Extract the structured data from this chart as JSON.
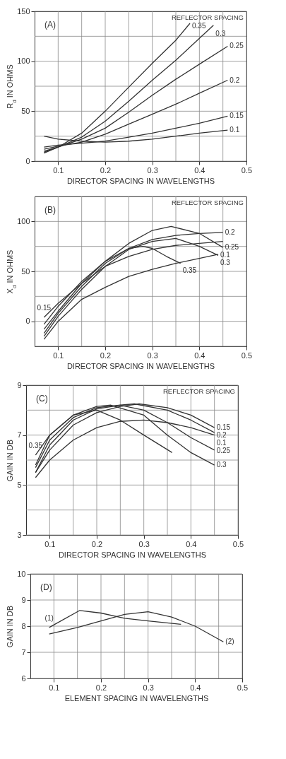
{
  "chart_data": [
    {
      "type": "line",
      "annotations": [
        "(A)"
      ],
      "legend": "top right",
      "legend_title": "REFLECTOR SPACING",
      "xlabel": "DIRECTOR SPACING IN WAVELENGTHS",
      "ylabel": "R$_{d}$ IN OHMS",
      "xlim": [
        0.05,
        0.5
      ],
      "ylim": [
        0,
        150
      ],
      "xticks": [
        0.1,
        {
          "value": 0.15,
          "label": null
        },
        0.2,
        {
          "value": 0.25,
          "label": null
        },
        0.3,
        {
          "value": 0.35,
          "label": null
        },
        0.4,
        {
          "value": 0.45,
          "label": null
        },
        0.5
      ],
      "yticks": [
        0,
        {
          "value": 25,
          "label": null
        },
        50,
        {
          "value": 75,
          "label": null
        },
        100,
        {
          "value": 125,
          "label": null
        },
        150
      ],
      "grid": true,
      "x": [
        0.07,
        0.1,
        0.15,
        0.2,
        0.25,
        0.3,
        0.35,
        0.4,
        0.46
      ],
      "series": [
        {
          "name": "0.35",
          "color": "#333333",
          "x": [
            0.07,
            0.1,
            0.15,
            0.2,
            0.25,
            0.3,
            0.35,
            0.38
          ],
          "values": [
            10,
            14,
            28,
            50,
            74,
            98,
            121,
            138
          ]
        },
        {
          "name": "0.3",
          "color": "#333333",
          "x": [
            0.07,
            0.1,
            0.15,
            0.2,
            0.25,
            0.3,
            0.35,
            0.4,
            0.43
          ],
          "values": [
            9,
            14,
            24,
            40,
            60,
            81,
            101,
            123,
            136
          ]
        },
        {
          "name": "0.25",
          "color": "#333333",
          "values": [
            8,
            14,
            22,
            33,
            49,
            66,
            82,
            97,
            115
          ]
        },
        {
          "name": "0.2",
          "color": "#333333",
          "values": [
            12,
            15,
            19,
            27,
            37,
            47,
            57,
            68,
            81
          ]
        },
        {
          "name": "0.15",
          "color": "#333333",
          "values": [
            14,
            16,
            18,
            20,
            24,
            28,
            33,
            38,
            45
          ]
        },
        {
          "name": "0.1",
          "color": "#333333",
          "values": [
            25,
            22,
            20,
            19,
            20,
            22,
            25,
            28,
            31
          ]
        }
      ]
    },
    {
      "type": "line",
      "annotations": [
        "(B)"
      ],
      "legend": "top right",
      "legend_title": "REFLECTOR SPACING",
      "xlabel": "DIRECTOR SPACING IN WAVELENGTHS",
      "ylabel": "X$_{d}$ IN OHMS",
      "xlim": [
        0.05,
        0.5
      ],
      "ylim": [
        -25,
        125
      ],
      "xticks": [
        0.1,
        {
          "value": 0.15,
          "label": null
        },
        0.2,
        {
          "value": 0.25,
          "label": null
        },
        0.3,
        {
          "value": 0.35,
          "label": null
        },
        0.4,
        {
          "value": 0.45,
          "label": null
        },
        0.5
      ],
      "yticks": [
        {
          "value": -25,
          "label": null
        },
        0,
        {
          "value": 25,
          "label": null
        },
        50,
        {
          "value": 75,
          "label": null
        },
        100,
        {
          "value": 125,
          "label": null
        }
      ],
      "grid": true,
      "series": [
        {
          "name": "0.35",
          "color": "#333333",
          "x": [
            0.07,
            0.1,
            0.15,
            0.2,
            0.25,
            0.28,
            0.3,
            0.33,
            0.36
          ],
          "values": [
            -12,
            8,
            35,
            58,
            73,
            75,
            73,
            65,
            58
          ]
        },
        {
          "name": "0.3",
          "color": "#333333",
          "x": [
            0.07,
            0.1,
            0.15,
            0.2,
            0.25,
            0.3,
            0.35,
            0.4,
            0.44
          ],
          "values": [
            -15,
            5,
            32,
            55,
            72,
            80,
            83,
            75,
            66
          ]
        },
        {
          "name": "0.25",
          "color": "#333333",
          "x": [
            0.07,
            0.1,
            0.15,
            0.2,
            0.25,
            0.3,
            0.34,
            0.4,
            0.45
          ],
          "values": [
            -8,
            10,
            38,
            60,
            78,
            91,
            95,
            88,
            74
          ]
        },
        {
          "name": "0.2",
          "color": "#333333",
          "x": [
            0.07,
            0.1,
            0.15,
            0.2,
            0.25,
            0.3,
            0.35,
            0.4,
            0.45
          ],
          "values": [
            -3,
            15,
            40,
            60,
            73,
            82,
            86,
            88,
            89
          ]
        },
        {
          "name": "0.15",
          "color": "#333333",
          "x": [
            0.07,
            0.1,
            0.15,
            0.2,
            0.25,
            0.3,
            0.35,
            0.4,
            0.45
          ],
          "values": [
            4,
            18,
            38,
            55,
            65,
            72,
            76,
            78,
            80
          ]
        },
        {
          "name": "0.1",
          "color": "#333333",
          "x": [
            0.07,
            0.1,
            0.15,
            0.2,
            0.25,
            0.3,
            0.35,
            0.4,
            0.44
          ],
          "values": [
            -18,
            0,
            22,
            34,
            45,
            52,
            58,
            63,
            67
          ]
        }
      ]
    },
    {
      "type": "line",
      "annotations": [
        "(C)"
      ],
      "legend": "top right",
      "legend_title": "REFLECTOR SPACING",
      "xlabel": "DIRECTOR SPACING IN WAVELENGTHS",
      "ylabel": "GAIN IN DB",
      "xlim": [
        0.05,
        0.5
      ],
      "ylim": [
        3,
        9
      ],
      "xticks": [
        0.1,
        {
          "value": 0.15,
          "label": null
        },
        0.2,
        {
          "value": 0.25,
          "label": null
        },
        0.3,
        {
          "value": 0.35,
          "label": null
        },
        0.4,
        {
          "value": 0.45,
          "label": null
        },
        0.5
      ],
      "yticks": [
        3,
        {
          "value": 4,
          "label": null
        },
        5,
        {
          "value": 6,
          "label": null
        },
        7,
        {
          "value": 8,
          "label": null
        },
        9
      ],
      "grid": true,
      "series": [
        {
          "name": "0.35",
          "color": "#333333",
          "x": [
            0.07,
            0.1,
            0.15,
            0.2,
            0.25,
            0.3,
            0.36
          ],
          "values": [
            6.2,
            7.0,
            7.8,
            8.0,
            7.6,
            7.0,
            6.3
          ]
        },
        {
          "name": "0.3",
          "color": "#333333",
          "x": [
            0.07,
            0.1,
            0.15,
            0.2,
            0.23,
            0.3,
            0.35,
            0.4,
            0.45
          ],
          "values": [
            5.8,
            7.0,
            7.8,
            8.15,
            8.2,
            7.8,
            7.0,
            6.3,
            5.8
          ]
        },
        {
          "name": "0.25",
          "color": "#333333",
          "x": [
            0.07,
            0.1,
            0.15,
            0.2,
            0.25,
            0.3,
            0.35,
            0.4,
            0.45
          ],
          "values": [
            5.7,
            6.8,
            7.7,
            8.1,
            8.2,
            8.0,
            7.5,
            6.9,
            6.4
          ]
        },
        {
          "name": "0.2",
          "color": "#333333",
          "x": [
            0.07,
            0.1,
            0.15,
            0.2,
            0.25,
            0.28,
            0.35,
            0.4,
            0.45
          ],
          "values": [
            5.5,
            6.6,
            7.6,
            8.05,
            8.2,
            8.25,
            8.0,
            7.6,
            7.1
          ]
        },
        {
          "name": "0.15",
          "color": "#333333",
          "x": [
            0.07,
            0.1,
            0.15,
            0.2,
            0.25,
            0.29,
            0.35,
            0.4,
            0.45
          ],
          "values": [
            5.5,
            6.4,
            7.4,
            7.9,
            8.15,
            8.25,
            8.1,
            7.8,
            7.3
          ]
        },
        {
          "name": "0.1",
          "color": "#333333",
          "x": [
            0.07,
            0.1,
            0.15,
            0.2,
            0.25,
            0.3,
            0.35,
            0.4,
            0.45
          ],
          "values": [
            5.3,
            6.0,
            6.8,
            7.3,
            7.55,
            7.6,
            7.5,
            7.3,
            7.0
          ]
        }
      ]
    },
    {
      "type": "line",
      "annotations": [
        "(D)"
      ],
      "xlabel": "ELEMENT SPACING IN WAVELENGTHS",
      "ylabel": "GAIN IN DB",
      "xlim": [
        0.05,
        0.5
      ],
      "ylim": [
        6,
        10
      ],
      "xticks": [
        0.1,
        {
          "value": 0.15,
          "label": null
        },
        0.2,
        {
          "value": 0.25,
          "label": null
        },
        0.3,
        {
          "value": 0.35,
          "label": null
        },
        0.4,
        {
          "value": 0.45,
          "label": null
        },
        0.5
      ],
      "yticks": [
        6,
        7,
        8,
        9,
        10
      ],
      "grid": true,
      "series": [
        {
          "name": "(1)",
          "color": "#333333",
          "x": [
            0.09,
            0.1,
            0.155,
            0.2,
            0.25,
            0.3,
            0.37
          ],
          "values": [
            7.95,
            8.05,
            8.6,
            8.5,
            8.3,
            8.2,
            8.07
          ]
        },
        {
          "name": "(2)",
          "color": "#333333",
          "x": [
            0.09,
            0.15,
            0.2,
            0.25,
            0.3,
            0.35,
            0.4,
            0.46
          ],
          "values": [
            7.7,
            7.95,
            8.2,
            8.45,
            8.55,
            8.35,
            8.0,
            7.4
          ]
        }
      ]
    }
  ]
}
